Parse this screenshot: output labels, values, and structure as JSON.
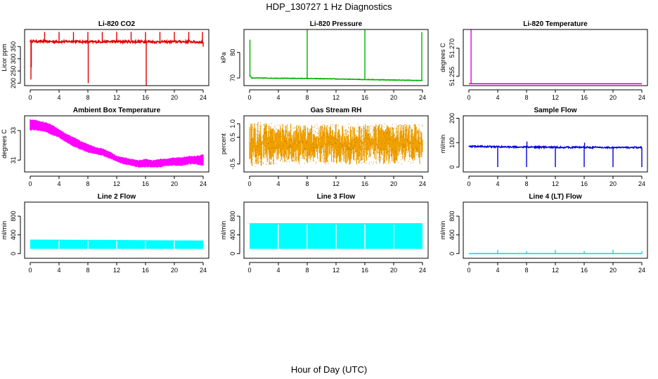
{
  "figure": {
    "title": "HDP_130727  1 Hz Diagnostics",
    "xlabel": "Hour of Day (UTC)"
  },
  "chart_data": [
    {
      "type": "line",
      "title": "Li-820 CO2",
      "ylabel": "Licor ppm",
      "color": "#e00000",
      "xlim": [
        0,
        24
      ],
      "ylim": [
        190,
        420
      ],
      "yticks": [
        200,
        250,
        300,
        350
      ],
      "xticks": [
        0,
        4,
        8,
        12,
        16,
        20,
        24
      ],
      "style": "baseline-spikes",
      "series": [
        {
          "baseline": 370,
          "noise": 5,
          "x": [
            0,
            2,
            4,
            6,
            8,
            10,
            12,
            14,
            16,
            18,
            20,
            22,
            24
          ],
          "y": [
            372,
            371,
            370,
            371,
            369,
            370,
            370,
            370,
            370,
            369,
            370,
            370,
            368
          ],
          "spikes": [
            {
              "x": 0.1,
              "y": 215
            },
            {
              "x": 0.15,
              "y": 265
            },
            {
              "x": 2.0,
              "y": 410
            },
            {
              "x": 4.0,
              "y": 410
            },
            {
              "x": 6.0,
              "y": 410
            },
            {
              "x": 8.0,
              "y": 410
            },
            {
              "x": 8.05,
              "y": 200
            },
            {
              "x": 10.0,
              "y": 410
            },
            {
              "x": 12.0,
              "y": 410
            },
            {
              "x": 14.0,
              "y": 410
            },
            {
              "x": 16.0,
              "y": 410
            },
            {
              "x": 16.1,
              "y": 190
            },
            {
              "x": 18.0,
              "y": 410
            },
            {
              "x": 20.0,
              "y": 410
            },
            {
              "x": 22.0,
              "y": 410
            },
            {
              "x": 23.9,
              "y": 410
            },
            {
              "x": 24.0,
              "y": 350
            }
          ]
        }
      ]
    },
    {
      "type": "line",
      "title": "Li-820 Pressure",
      "ylabel": "kPa",
      "color": "#00b000",
      "xlim": [
        0,
        24
      ],
      "ylim": [
        67,
        89
      ],
      "yticks": [
        70,
        80
      ],
      "xticks": [
        0,
        4,
        8,
        12,
        16,
        20,
        24
      ],
      "style": "baseline-spikes",
      "series": [
        {
          "baseline": 69.5,
          "noise": 0.1,
          "x": [
            0,
            0.3,
            4,
            8,
            12,
            16,
            20,
            24
          ],
          "y": [
            71,
            70,
            69.9,
            69.8,
            69.6,
            69.4,
            69.2,
            69.0
          ],
          "spikes": [
            {
              "x": 0.05,
              "y": 85
            },
            {
              "x": 8.0,
              "y": 89
            },
            {
              "x": 16.0,
              "y": 89
            },
            {
              "x": 23.9,
              "y": 88
            }
          ]
        }
      ]
    },
    {
      "type": "line",
      "title": "Li-820 Temperature",
      "ylabel": "degrees C",
      "color": "#e000e0",
      "xlim": [
        0,
        24
      ],
      "ylim": [
        51.25,
        51.28
      ],
      "yticks": [
        51.255,
        51.27
      ],
      "ytick_labels": [
        "51.255",
        "51.270"
      ],
      "xticks": [
        0,
        4,
        8,
        12,
        16,
        20,
        24
      ],
      "style": "baseline-spikes",
      "series": [
        {
          "baseline": 51.251,
          "noise": 0,
          "x": [
            0,
            24
          ],
          "y": [
            51.251,
            51.251
          ],
          "spikes": [
            {
              "x": 0.3,
              "y": 51.28
            }
          ]
        }
      ]
    },
    {
      "type": "area",
      "title": "Ambient Box Temperature",
      "ylabel": "degrees C",
      "color": "#ff00ff",
      "xlim": [
        0,
        24
      ],
      "ylim": [
        30.2,
        34.0
      ],
      "yticks": [
        31,
        33
      ],
      "xticks": [
        0,
        4,
        8,
        12,
        16,
        20,
        24
      ],
      "style": "band",
      "series": [
        {
          "x": [
            0,
            1,
            2,
            3,
            4,
            5,
            6,
            7,
            8,
            9,
            10,
            11,
            12,
            13,
            14,
            15,
            16,
            17,
            18,
            19,
            20,
            21,
            22,
            23,
            24
          ],
          "lo": [
            33.0,
            33.0,
            32.9,
            32.7,
            32.5,
            32.2,
            31.9,
            31.7,
            31.5,
            31.4,
            31.3,
            31.1,
            30.9,
            30.7,
            30.6,
            30.5,
            30.5,
            30.5,
            30.5,
            30.6,
            30.6,
            30.6,
            30.7,
            30.7,
            30.6
          ],
          "hi": [
            33.8,
            33.7,
            33.6,
            33.4,
            33.1,
            32.8,
            32.6,
            32.3,
            32.1,
            31.9,
            31.8,
            31.6,
            31.3,
            31.2,
            31.1,
            31.0,
            31.1,
            31.0,
            31.1,
            31.1,
            31.2,
            31.2,
            31.3,
            31.3,
            31.4
          ]
        }
      ]
    },
    {
      "type": "area",
      "title": "Gas Stream RH",
      "ylabel": "percent",
      "color": "#f0a000",
      "xlim": [
        0,
        24
      ],
      "ylim": [
        -0.8,
        1.3
      ],
      "yticks": [
        -0.5,
        0.5,
        1.0
      ],
      "ytick_labels": [
        "-0.5",
        "0.5",
        "1.0"
      ],
      "xticks": [
        0,
        4,
        8,
        12,
        16,
        20,
        24
      ],
      "style": "noise",
      "series": [
        {
          "x": [
            0,
            4,
            8,
            12,
            16,
            20,
            24
          ],
          "lo": [
            -0.6,
            -0.5,
            -0.5,
            -0.5,
            -0.5,
            -0.5,
            -0.5
          ],
          "hi": [
            1.1,
            1.0,
            1.0,
            1.0,
            1.0,
            1.0,
            1.0
          ]
        }
      ]
    },
    {
      "type": "line",
      "title": "Sample Flow",
      "ylabel": "ml/min",
      "color": "#0000e0",
      "xlim": [
        0,
        24
      ],
      "ylim": [
        -20,
        210
      ],
      "yticks": [
        0,
        100,
        200
      ],
      "xticks": [
        0,
        4,
        8,
        12,
        16,
        20,
        24
      ],
      "style": "baseline-spikes",
      "series": [
        {
          "baseline": 82,
          "noise": 3,
          "x": [
            0,
            4,
            8,
            12,
            16,
            20,
            24
          ],
          "y": [
            85,
            83,
            82,
            81,
            81,
            80,
            80
          ],
          "spikes": [
            {
              "x": 4.0,
              "y": 0
            },
            {
              "x": 8.0,
              "y": 0
            },
            {
              "x": 8.05,
              "y": 105
            },
            {
              "x": 12.0,
              "y": 0
            },
            {
              "x": 16.0,
              "y": 0
            },
            {
              "x": 16.05,
              "y": 100
            },
            {
              "x": 20.0,
              "y": 0
            },
            {
              "x": 24.0,
              "y": 0
            }
          ]
        }
      ]
    },
    {
      "type": "area",
      "title": "Line 2 Flow",
      "ylabel": "ml/min",
      "color": "#00ffff",
      "xlim": [
        0,
        24
      ],
      "ylim": [
        -100,
        1100
      ],
      "yticks": [
        0,
        400,
        800
      ],
      "xticks": [
        0,
        4,
        8,
        12,
        16,
        20,
        24
      ],
      "style": "block",
      "series": [
        {
          "x": [
            0,
            24
          ],
          "lo": [
            100,
            100
          ],
          "hi": [
            300,
            280
          ],
          "gaps": [
            4,
            8,
            12,
            16,
            20
          ]
        }
      ]
    },
    {
      "type": "area",
      "title": "Line 3 Flow",
      "ylabel": "ml/min",
      "color": "#00ffff",
      "xlim": [
        0,
        24
      ],
      "ylim": [
        -100,
        1100
      ],
      "yticks": [
        0,
        400,
        800
      ],
      "xticks": [
        0,
        4,
        8,
        12,
        16,
        20,
        24
      ],
      "style": "block",
      "series": [
        {
          "x": [
            0,
            24
          ],
          "lo": [
            100,
            100
          ],
          "hi": [
            650,
            650
          ],
          "gaps": [
            4,
            8,
            12,
            16,
            20
          ]
        }
      ]
    },
    {
      "type": "line",
      "title": "Line 4 (LT) Flow",
      "ylabel": "ml/min",
      "color": "#00e0e0",
      "xlim": [
        0,
        24
      ],
      "ylim": [
        -100,
        1100
      ],
      "yticks": [
        0,
        400,
        800
      ],
      "xticks": [
        0,
        4,
        8,
        12,
        16,
        20,
        24
      ],
      "style": "baseline-spikes",
      "series": [
        {
          "baseline": 0,
          "noise": 0,
          "x": [
            0,
            24
          ],
          "y": [
            0,
            0
          ],
          "spikes": [
            {
              "x": 4.0,
              "y": 80
            },
            {
              "x": 8.0,
              "y": 50
            },
            {
              "x": 12.0,
              "y": 80
            },
            {
              "x": 16.0,
              "y": 50
            },
            {
              "x": 20.0,
              "y": 80
            },
            {
              "x": 24.0,
              "y": 50
            }
          ]
        }
      ]
    }
  ]
}
